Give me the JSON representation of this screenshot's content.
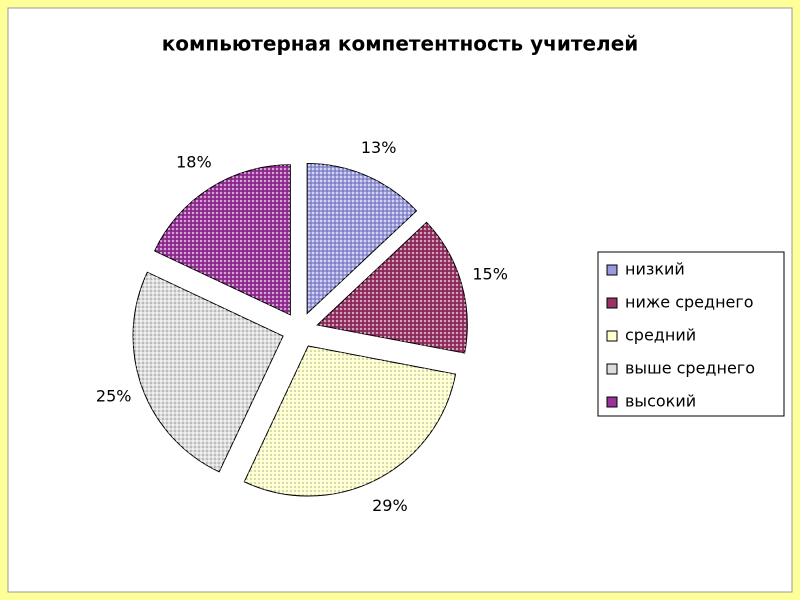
{
  "chart_data": {
    "type": "pie",
    "title": "компьютерная компетентность учителей",
    "categories": [
      "низкий",
      "ниже среднего",
      "средний",
      "выше среднего",
      "высокий"
    ],
    "values": [
      13,
      15,
      29,
      25,
      18
    ],
    "value_labels": [
      "13%",
      "15%",
      "29%",
      "25%",
      "18%"
    ],
    "colors": [
      "#9999dd",
      "#993366",
      "#ffffcc",
      "#dddddd",
      "#993399"
    ],
    "legend": "right"
  }
}
